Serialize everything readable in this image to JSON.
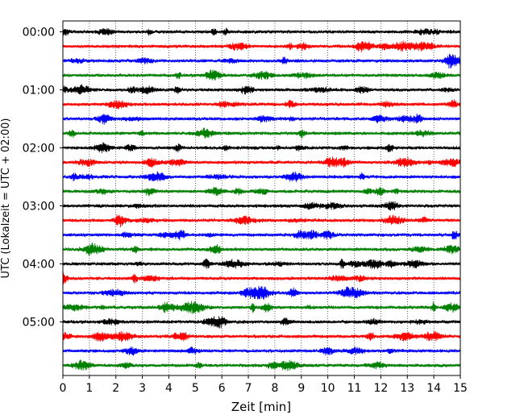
{
  "chart_data": {
    "type": "line",
    "title": "",
    "xlabel": "Zeit  [min]",
    "ylabel": "UTC (Lokalzeit = UTC + 02:00)",
    "xlim": [
      0,
      15
    ],
    "x_ticks": [
      "0",
      "1",
      "2",
      "3",
      "4",
      "5",
      "6",
      "7",
      "8",
      "9",
      "10",
      "11",
      "12",
      "13",
      "14",
      "15"
    ],
    "y_tick_labels": [
      "00:00",
      "01:00",
      "02:00",
      "03:00",
      "04:00",
      "05:00"
    ],
    "trace_minutes_per_line": 15,
    "grid_x": true,
    "grid_style": "dotted",
    "trace_colors": [
      "#000000",
      "#ff0000",
      "#0000ff",
      "#008000"
    ],
    "series": [
      {
        "start": "00:00",
        "color": "#000000"
      },
      {
        "start": "00:15",
        "color": "#ff0000"
      },
      {
        "start": "00:30",
        "color": "#0000ff"
      },
      {
        "start": "00:45",
        "color": "#008000"
      },
      {
        "start": "01:00",
        "color": "#000000"
      },
      {
        "start": "01:15",
        "color": "#ff0000"
      },
      {
        "start": "01:30",
        "color": "#0000ff"
      },
      {
        "start": "01:45",
        "color": "#008000"
      },
      {
        "start": "02:00",
        "color": "#000000"
      },
      {
        "start": "02:15",
        "color": "#ff0000"
      },
      {
        "start": "02:30",
        "color": "#0000ff"
      },
      {
        "start": "02:45",
        "color": "#008000"
      },
      {
        "start": "03:00",
        "color": "#000000"
      },
      {
        "start": "03:15",
        "color": "#ff0000"
      },
      {
        "start": "03:30",
        "color": "#0000ff"
      },
      {
        "start": "03:45",
        "color": "#008000"
      },
      {
        "start": "04:00",
        "color": "#000000"
      },
      {
        "start": "04:15",
        "color": "#ff0000"
      },
      {
        "start": "04:30",
        "color": "#0000ff"
      },
      {
        "start": "04:45",
        "color": "#008000"
      },
      {
        "start": "05:00",
        "color": "#000000"
      },
      {
        "start": "05:15",
        "color": "#ff0000"
      },
      {
        "start": "05:30",
        "color": "#0000ff"
      },
      {
        "start": "05:45",
        "color": "#008000"
      }
    ]
  }
}
